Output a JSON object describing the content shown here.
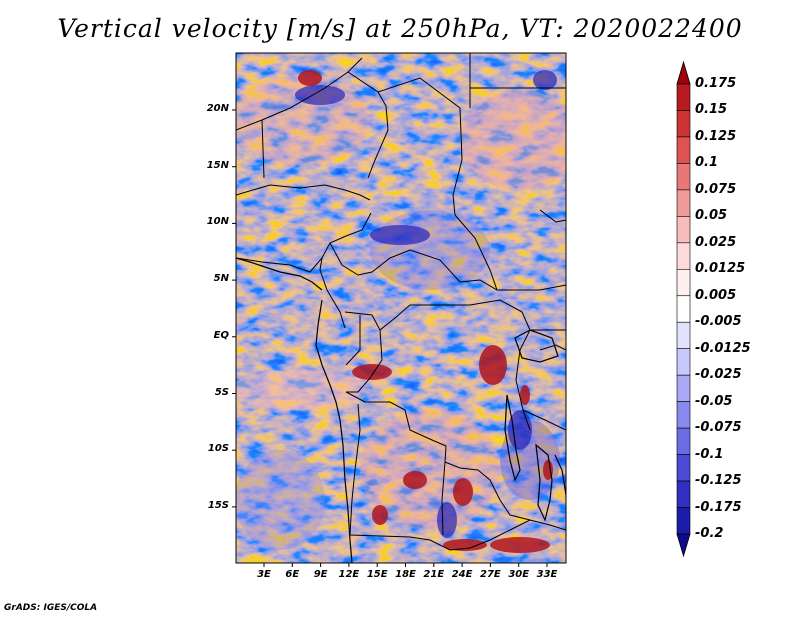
{
  "title": "Vertical velocity [m/s] at 250hPa, VT: 2020022400",
  "credit": "GrADS: IGES/COLA",
  "lat_labels": [
    "20N",
    "15N",
    "10N",
    "5N",
    "EQ",
    "5S",
    "10S",
    "15S"
  ],
  "lon_labels": [
    "3E",
    "6E",
    "9E",
    "12E",
    "15E",
    "18E",
    "21E",
    "24E",
    "27E",
    "30E",
    "33E"
  ],
  "colorbar": {
    "levels": [
      "0.175",
      "0.15",
      "0.125",
      "0.1",
      "0.075",
      "0.05",
      "0.025",
      "0.0125",
      "0.005",
      "-0.005",
      "-0.0125",
      "-0.025",
      "-0.05",
      "-0.075",
      "-0.1",
      "-0.125",
      "-0.175",
      "-0.2"
    ],
    "colors": [
      "#a0000e",
      "#b81a22",
      "#cc3333",
      "#de5252",
      "#e87878",
      "#f09a9a",
      "#f7bcbc",
      "#fcdada",
      "#fff0f0",
      "#ffffff",
      "#e2e2ff",
      "#c8c8fb",
      "#a9a9f5",
      "#8a8aee",
      "#6b6be4",
      "#4b4bd6",
      "#2f2fc2",
      "#1c1caa",
      "#100a8c"
    ]
  }
}
